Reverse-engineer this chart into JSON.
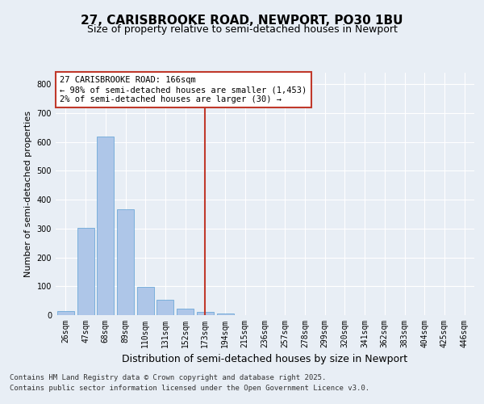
{
  "title1": "27, CARISBROOKE ROAD, NEWPORT, PO30 1BU",
  "title2": "Size of property relative to semi-detached houses in Newport",
  "xlabel": "Distribution of semi-detached houses by size in Newport",
  "ylabel": "Number of semi-detached properties",
  "categories": [
    "26sqm",
    "47sqm",
    "68sqm",
    "89sqm",
    "110sqm",
    "131sqm",
    "152sqm",
    "173sqm",
    "194sqm",
    "215sqm",
    "236sqm",
    "257sqm",
    "278sqm",
    "299sqm",
    "320sqm",
    "341sqm",
    "362sqm",
    "383sqm",
    "404sqm",
    "425sqm",
    "446sqm"
  ],
  "values": [
    14,
    303,
    620,
    368,
    97,
    52,
    22,
    10,
    7,
    1,
    0,
    0,
    0,
    0,
    0,
    0,
    0,
    0,
    0,
    0,
    0
  ],
  "bar_color": "#aec6e8",
  "bar_edgecolor": "#5a9fd4",
  "vline_color": "#c0392b",
  "annotation_text": "27 CARISBROOKE ROAD: 166sqm\n← 98% of semi-detached houses are smaller (1,453)\n2% of semi-detached houses are larger (30) →",
  "annotation_box_color": "#c0392b",
  "annotation_fill": "#ffffff",
  "ylim": [
    0,
    840
  ],
  "yticks": [
    0,
    100,
    200,
    300,
    400,
    500,
    600,
    700,
    800
  ],
  "background_color": "#e8eef5",
  "plot_bg_color": "#e8eef5",
  "footer1": "Contains HM Land Registry data © Crown copyright and database right 2025.",
  "footer2": "Contains public sector information licensed under the Open Government Licence v3.0.",
  "title1_fontsize": 11,
  "title2_fontsize": 9,
  "xlabel_fontsize": 9,
  "ylabel_fontsize": 8,
  "tick_fontsize": 7,
  "footer_fontsize": 6.5
}
